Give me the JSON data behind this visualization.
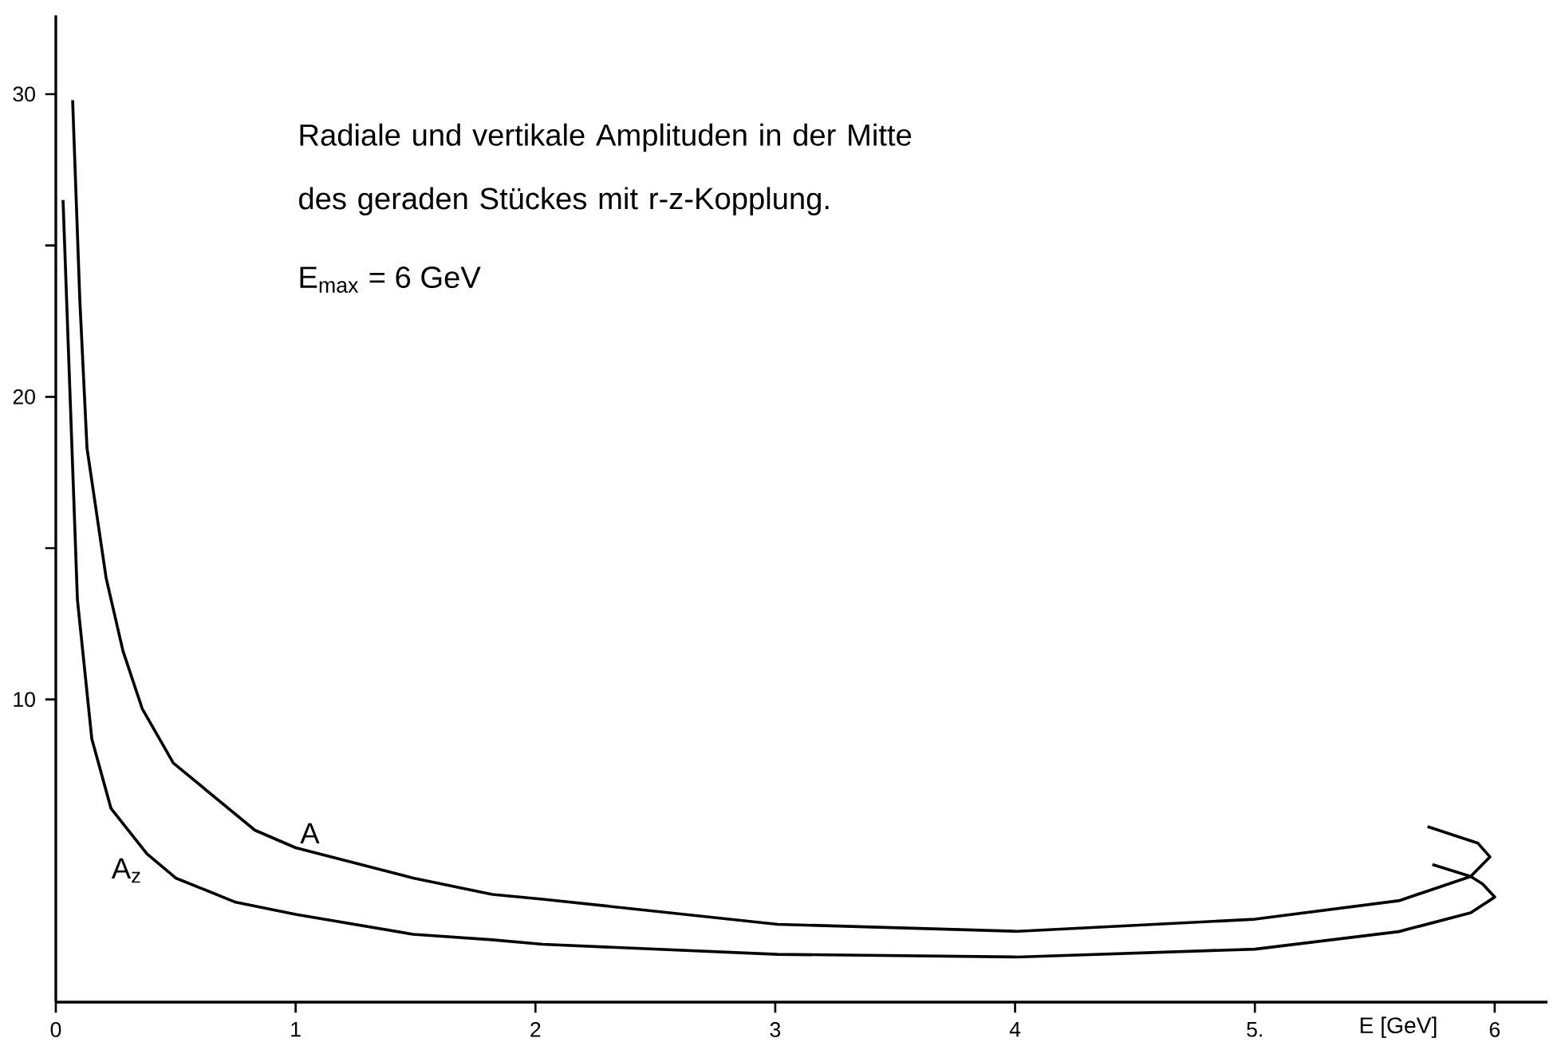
{
  "chart_data": {
    "type": "line",
    "title": "Radiale und vertikale Amplituden in der Mitte des geraden Stückes mit r-z-Kopplung.",
    "subtitle": "E$_{max}$ = 6 GeV",
    "xlabel": "E [GeV]",
    "series": [
      {
        "name": "A",
        "color": "#000000",
        "x": [
          0.07,
          0.1,
          0.13,
          0.21,
          0.28,
          0.36,
          0.49,
          0.83,
          1.0,
          1.49,
          1.82,
          2.03,
          3.01,
          4.01,
          5.0,
          5.6,
          5.9,
          5.98,
          5.93,
          5.72
        ],
        "values": [
          29.8,
          23.2,
          18.3,
          14,
          11.6,
          9.7,
          7.9,
          5.68,
          5.1,
          4.1,
          3.56,
          3.4,
          2.57,
          2.34,
          2.74,
          3.35,
          4.15,
          4.8,
          5.25,
          5.8
        ]
      },
      {
        "name": "A$_{z}$",
        "color": "#000000",
        "x": [
          0.03,
          0.06,
          0.09,
          0.15,
          0.23,
          0.38,
          0.5,
          0.75,
          1.0,
          1.49,
          1.82,
          2.03,
          3.01,
          4.01,
          5.0,
          5.6,
          5.9,
          6.0,
          5.95,
          5.9,
          5.74
        ],
        "values": [
          26.5,
          19.9,
          13.3,
          8.7,
          6.4,
          4.9,
          4.1,
          3.3,
          2.9,
          2.24,
          2.06,
          1.91,
          1.58,
          1.49,
          1.75,
          2.33,
          2.95,
          3.47,
          3.9,
          4.15,
          4.55
        ]
      }
    ],
    "xlim": [
      0,
      6.22
    ],
    "ylim": [
      0,
      32.6
    ],
    "xticks": [
      0,
      1,
      2,
      3,
      4,
      {
        "value": 5,
        "label": "5."
      },
      6
    ],
    "yticks": [
      10,
      {
        "value": 15,
        "label": null
      },
      20,
      {
        "value": 25,
        "label": null
      },
      30
    ],
    "grid": false,
    "legend": false,
    "marker": "none",
    "line_style": "solid"
  }
}
